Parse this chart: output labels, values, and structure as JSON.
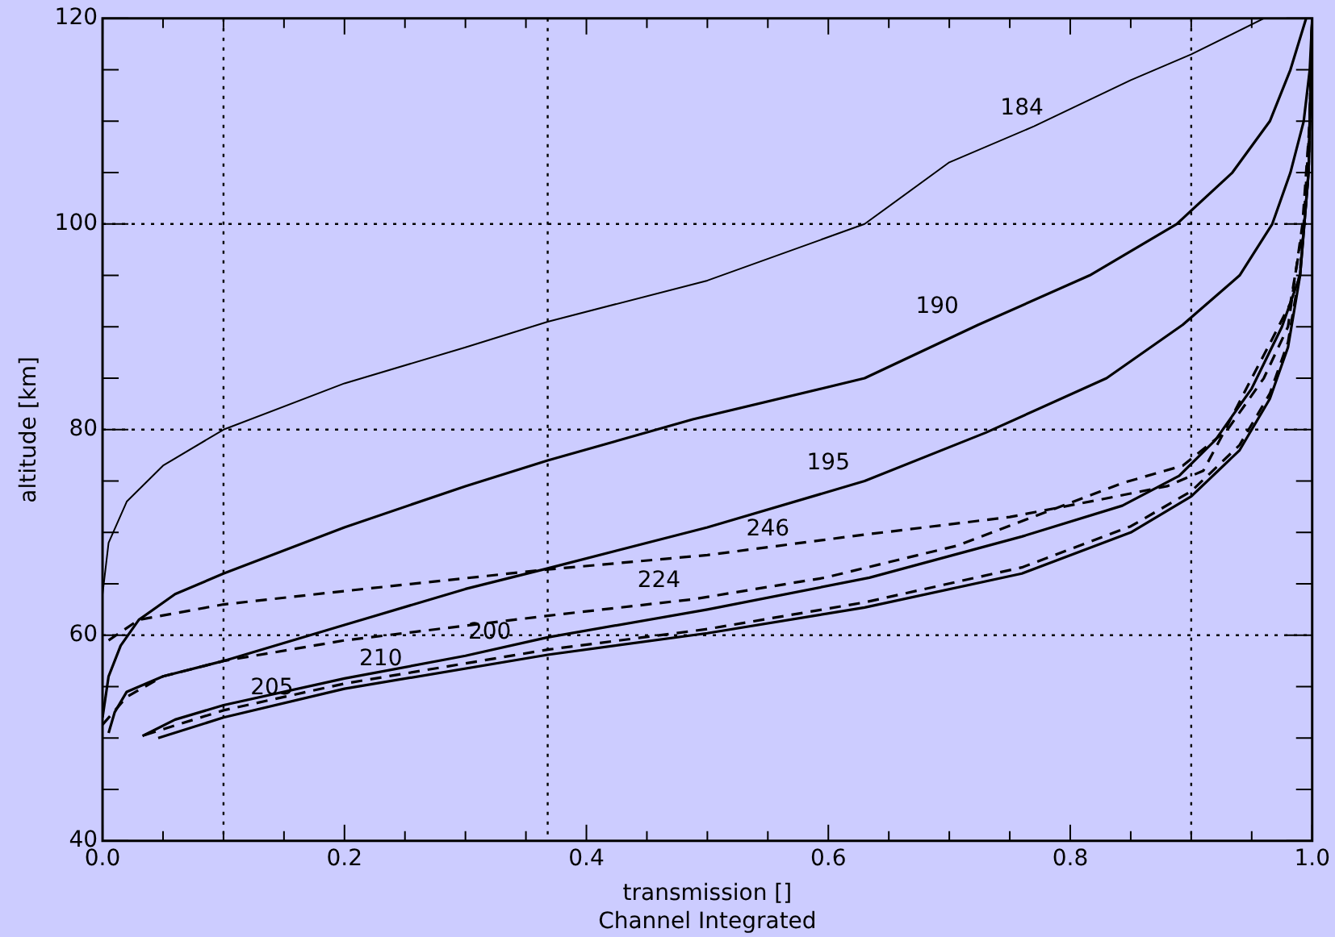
{
  "chart_data": {
    "type": "line",
    "xlabel": "transmission []",
    "ylabel": "altitude [km]",
    "annotations": [
      "Channel Integrated"
    ],
    "xlim": [
      0,
      1
    ],
    "ylim": [
      40,
      120
    ],
    "xticks": [
      {
        "value": 0,
        "label": "0.0"
      },
      {
        "value": 0.05,
        "label": null
      },
      {
        "value": 0.1,
        "label": null
      },
      {
        "value": 0.15,
        "label": null
      },
      {
        "value": 0.2,
        "label": "0.2"
      },
      {
        "value": 0.25,
        "label": null
      },
      {
        "value": 0.3,
        "label": null
      },
      {
        "value": 0.35,
        "label": null
      },
      {
        "value": 0.4,
        "label": "0.4"
      },
      {
        "value": 0.45,
        "label": null
      },
      {
        "value": 0.5,
        "label": null
      },
      {
        "value": 0.55,
        "label": null
      },
      {
        "value": 0.6,
        "label": "0.6"
      },
      {
        "value": 0.65,
        "label": null
      },
      {
        "value": 0.7,
        "label": null
      },
      {
        "value": 0.75,
        "label": null
      },
      {
        "value": 0.8,
        "label": "0.8"
      },
      {
        "value": 0.85,
        "label": null
      },
      {
        "value": 0.9,
        "label": null
      },
      {
        "value": 0.95,
        "label": null
      },
      {
        "value": 1,
        "label": "1.0"
      }
    ],
    "yticks": [
      40,
      {
        "value": 45,
        "label": null
      },
      {
        "value": 50,
        "label": null
      },
      {
        "value": 55,
        "label": null
      },
      60,
      {
        "value": 65,
        "label": null
      },
      {
        "value": 70,
        "label": null
      },
      {
        "value": 75,
        "label": null
      },
      80,
      {
        "value": 85,
        "label": null
      },
      {
        "value": 90,
        "label": null
      },
      {
        "value": 95,
        "label": null
      },
      100,
      {
        "value": 105,
        "label": null
      },
      {
        "value": 110,
        "label": null
      },
      {
        "value": 115,
        "label": null
      },
      120
    ],
    "grid": false,
    "legend": false,
    "marker": "none",
    "ref_lines": [
      {
        "axis": "x",
        "value": 0.1,
        "line_style": "dotted",
        "color": "#000000"
      },
      {
        "axis": "x",
        "value": 0.368,
        "line_style": "dotted",
        "color": "#000000"
      },
      {
        "axis": "x",
        "value": 0.9,
        "line_style": "dotted",
        "color": "#000000"
      },
      {
        "axis": "y",
        "value": 60,
        "line_style": "dotted",
        "color": "#000000"
      },
      {
        "axis": "y",
        "value": 80,
        "line_style": "dotted",
        "color": "#000000"
      },
      {
        "axis": "y",
        "value": 100,
        "line_style": "dotted",
        "color": "#000000"
      }
    ],
    "series": [
      {
        "name": "184",
        "color": "#000000",
        "line_style": "solid",
        "x": [
          0,
          0.005,
          0.02,
          0.05,
          0.1,
          0.2,
          0.3,
          0.368,
          0.5,
          0.63,
          0.7,
          0.77,
          0.85,
          0.9,
          0.96
        ],
        "values": [
          64,
          69,
          73,
          76.5,
          80,
          84.5,
          88,
          90.5,
          94.5,
          100,
          106,
          109.5,
          114,
          116.5,
          120
        ]
      },
      {
        "name": "190",
        "color": "#000000",
        "line_style": "solid",
        "x": [
          0,
          0.005,
          0.015,
          0.03,
          0.06,
          0.1,
          0.2,
          0.3,
          0.368,
          0.488,
          0.63,
          0.724,
          0.816,
          0.888,
          0.934,
          0.965,
          0.982,
          0.995
        ],
        "values": [
          52,
          56,
          59,
          61.5,
          64,
          66,
          70.5,
          74.5,
          77,
          81,
          85,
          90.2,
          95,
          100,
          105,
          110,
          115,
          120
        ]
      },
      {
        "name": "195",
        "color": "#000000",
        "line_style": "solid",
        "x": [
          0.005,
          0.01,
          0.02,
          0.05,
          0.1,
          0.2,
          0.3,
          0.368,
          0.5,
          0.63,
          0.73,
          0.83,
          0.893,
          0.94,
          0.967,
          0.982,
          0.993,
          0.998,
          1
        ],
        "values": [
          50.5,
          52.5,
          54.5,
          56,
          57.5,
          61,
          64.5,
          66.5,
          70.5,
          75,
          79.7,
          85,
          90.2,
          95,
          100,
          105,
          110,
          115,
          120
        ]
      },
      {
        "name": "200",
        "color": "#000000",
        "line_style": "solid",
        "x": [
          0.033,
          0.06,
          0.1,
          0.2,
          0.3,
          0.368,
          0.5,
          0.634,
          0.76,
          0.843,
          0.89,
          0.92,
          0.95,
          0.975,
          0.99,
          0.997,
          1
        ],
        "values": [
          50.2,
          51.8,
          53.2,
          55.8,
          58,
          59.8,
          62.5,
          65.6,
          69.6,
          72.6,
          75.5,
          79,
          84,
          90,
          95,
          105,
          120
        ]
      },
      {
        "name": "205",
        "color": "#000000",
        "line_style": "solid",
        "x": [
          0.046,
          0.1,
          0.2,
          0.368,
          0.5,
          0.63,
          0.76,
          0.85,
          0.9,
          0.94,
          0.965,
          0.98,
          0.99,
          0.997,
          1
        ],
        "values": [
          50,
          52,
          54.8,
          58.1,
          60.2,
          62.7,
          66,
          70,
          73.5,
          78,
          83,
          88,
          95,
          105,
          120
        ]
      },
      {
        "name": "210",
        "color": "#000000",
        "line_style": "dashed",
        "x": [
          0.035,
          0.1,
          0.2,
          0.368,
          0.5,
          0.63,
          0.76,
          0.85,
          0.9,
          0.94,
          0.965,
          0.98,
          0.99,
          0.997,
          1
        ],
        "values": [
          50.3,
          52.7,
          55.3,
          58.6,
          60.6,
          63.2,
          66.6,
          70.6,
          74,
          78.5,
          83.5,
          88.5,
          95.5,
          105,
          120
        ]
      },
      {
        "name": "224",
        "color": "#000000",
        "line_style": "dashed",
        "x": [
          0,
          0.02,
          0.05,
          0.1,
          0.2,
          0.368,
          0.488,
          0.597,
          0.706,
          0.843,
          0.893,
          0.93,
          0.96,
          0.98,
          0.992,
          0.998,
          1
        ],
        "values": [
          51.3,
          54,
          56,
          57.5,
          59.5,
          61.9,
          63.5,
          65.6,
          68.7,
          74.8,
          76.5,
          80,
          85,
          90,
          100,
          110,
          120
        ]
      },
      {
        "name": "246",
        "color": "#000000",
        "line_style": "dashed",
        "x": [
          0.005,
          0.03,
          0.1,
          0.2,
          0.368,
          0.5,
          0.624,
          0.75,
          0.825,
          0.88,
          0.91,
          0.925,
          0.95,
          0.966,
          0.982,
          0.993,
          0.998,
          1
        ],
        "values": [
          59.5,
          61.5,
          63,
          64.3,
          66.4,
          67.8,
          69.7,
          71.5,
          73.2,
          74.5,
          76,
          79.3,
          85,
          88.6,
          92.3,
          100,
          110,
          120
        ]
      }
    ]
  }
}
